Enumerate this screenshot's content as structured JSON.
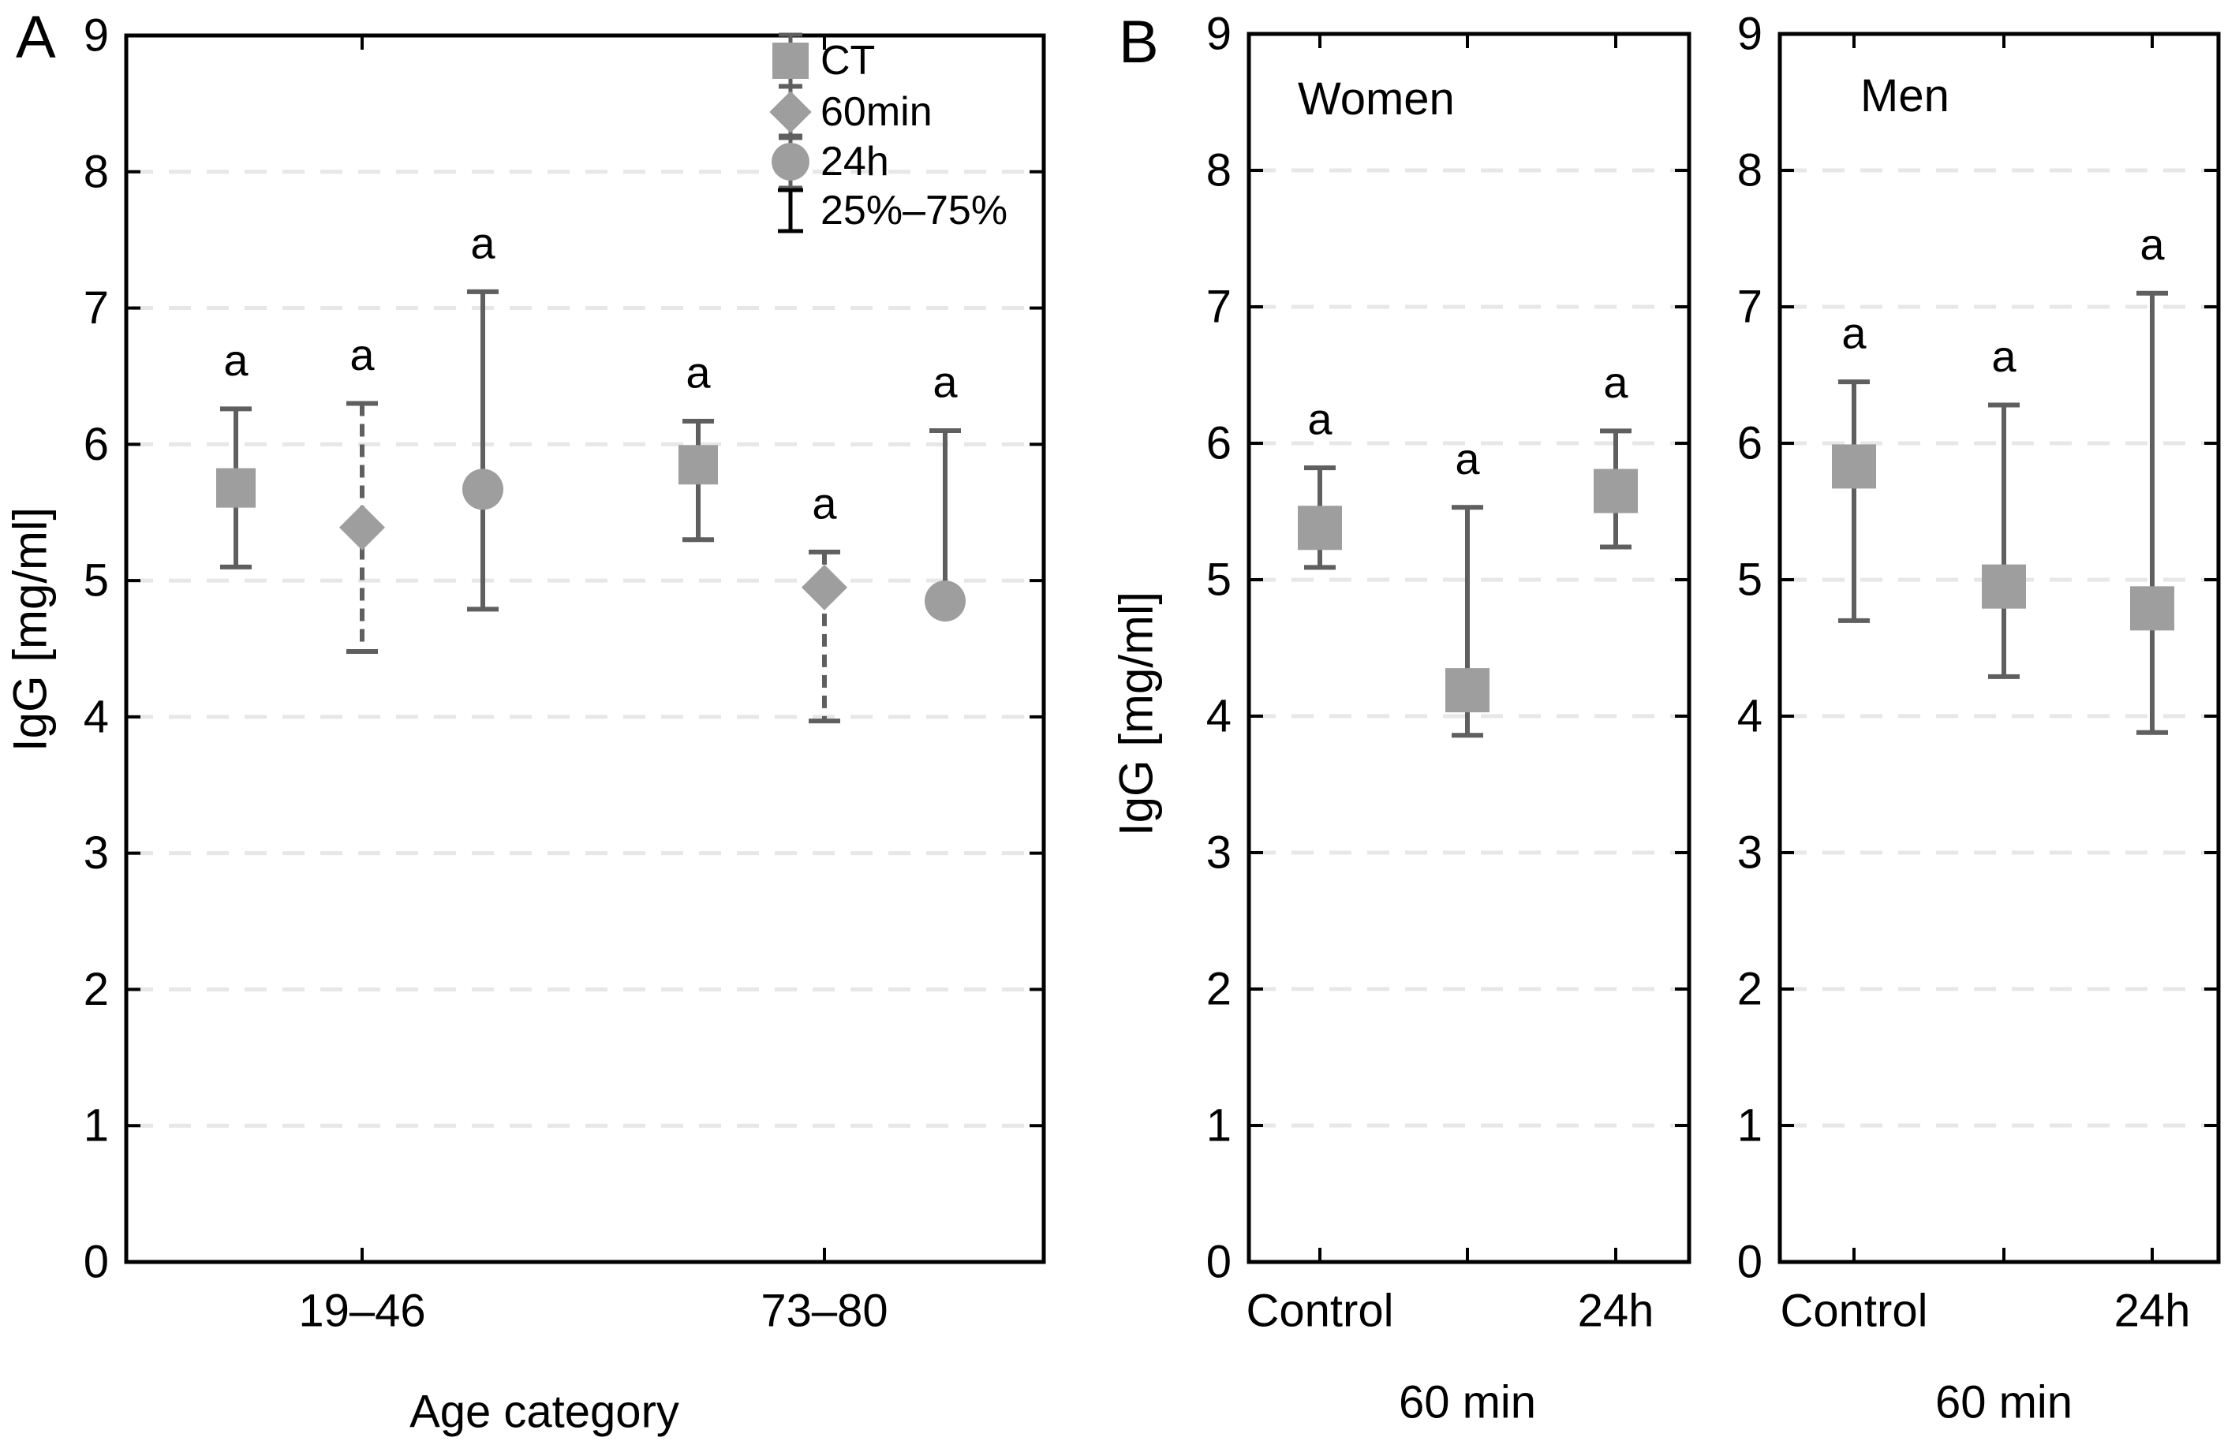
{
  "figure": {
    "panel_a": {
      "letter": "A",
      "y_axis_label": "IgG [mg/ml]",
      "x_axis_label": "Age category"
    },
    "panel_b": {
      "letter": "B",
      "y_axis_label": "IgG [mg/ml]"
    }
  },
  "legend": {
    "items": [
      {
        "symbol": "square-marker",
        "label": "CT"
      },
      {
        "symbol": "diamond-marker",
        "label": "60min"
      },
      {
        "symbol": "circle-marker",
        "label": "24h"
      },
      {
        "symbol": "error-bar",
        "label": "25%–75%"
      }
    ]
  },
  "style": {
    "marker_fill": "#9e9e9e",
    "whisker_color": "#5f5f5f",
    "grid_color": "#e7e7e7",
    "frame_color": "#000000",
    "text_color": "#000000",
    "background": "#ffffff"
  },
  "chart_data": [
    {
      "type": "scatter",
      "panel": "A",
      "title": "",
      "xlabel": "Age category",
      "ylabel": "IgG [mg/ml]",
      "ylim": [
        0,
        9
      ],
      "yticks": [
        0,
        1,
        2,
        3,
        4,
        5,
        6,
        7,
        8,
        9
      ],
      "gridlines": [
        1,
        2,
        3,
        4,
        5,
        6,
        7,
        8
      ],
      "grid_style": "dashed-horizontal",
      "legend_position": "top-right-inside",
      "error_bar_meaning": "25%–75%",
      "categories": [
        "19–46",
        "73–80"
      ],
      "series": [
        {
          "name": "CT",
          "marker": "square",
          "whisker_style": "solid",
          "points": [
            {
              "category": "19–46",
              "median": 5.68,
              "p25": 5.1,
              "p75": 6.26,
              "sig_label": "a"
            },
            {
              "category": "73–80",
              "median": 5.85,
              "p25": 5.3,
              "p75": 6.17,
              "sig_label": "a"
            }
          ]
        },
        {
          "name": "60min",
          "marker": "diamond",
          "whisker_style": "dashed",
          "points": [
            {
              "category": "19–46",
              "median": 5.39,
              "p25": 4.48,
              "p75": 6.3,
              "sig_label": "a"
            },
            {
              "category": "73–80",
              "median": 4.95,
              "p25": 3.97,
              "p75": 5.21,
              "sig_label": "a"
            }
          ]
        },
        {
          "name": "24h",
          "marker": "circle",
          "whisker_style": "solid",
          "points": [
            {
              "category": "19–46",
              "median": 5.67,
              "p25": 4.79,
              "p75": 7.12,
              "sig_label": "a"
            },
            {
              "category": "73–80",
              "median": 4.85,
              "p25": null,
              "p75": 6.1,
              "sig_label": "a"
            }
          ]
        }
      ]
    },
    {
      "type": "scatter",
      "panel": "B-left",
      "title": "Women",
      "xlabel": "",
      "ylabel": "IgG [mg/ml]",
      "ylim": [
        0,
        9
      ],
      "yticks": [
        0,
        1,
        2,
        3,
        4,
        5,
        6,
        7,
        8,
        9
      ],
      "gridlines": [
        1,
        2,
        3,
        4,
        5,
        6,
        7,
        8
      ],
      "grid_style": "dashed-horizontal",
      "error_bar_meaning": "25%–75%",
      "categories": [
        "Control",
        "60 min",
        "24h"
      ],
      "series": [
        {
          "name": "CT",
          "marker": "square",
          "whisker_style": "solid",
          "points": [
            {
              "category": "Control",
              "median": 5.38,
              "p25": 5.09,
              "p75": 5.82,
              "sig_label": "a"
            },
            {
              "category": "60 min",
              "median": 4.19,
              "p25": 3.86,
              "p75": 5.53,
              "sig_label": "a"
            },
            {
              "category": "24h",
              "median": 5.65,
              "p25": 5.24,
              "p75": 6.09,
              "sig_label": "a"
            }
          ]
        }
      ]
    },
    {
      "type": "scatter",
      "panel": "B-right",
      "title": "Men",
      "xlabel": "",
      "ylabel": "IgG [mg/ml]",
      "ylim": [
        0,
        9
      ],
      "yticks": [
        0,
        1,
        2,
        3,
        4,
        5,
        6,
        7,
        8,
        9
      ],
      "gridlines": [
        1,
        2,
        3,
        4,
        5,
        6,
        7,
        8
      ],
      "grid_style": "dashed-horizontal",
      "error_bar_meaning": "25%–75%",
      "categories": [
        "Control",
        "60 min",
        "24h"
      ],
      "series": [
        {
          "name": "CT",
          "marker": "square",
          "whisker_style": "solid",
          "points": [
            {
              "category": "Control",
              "median": 5.83,
              "p25": 4.7,
              "p75": 6.45,
              "sig_label": "a"
            },
            {
              "category": "60 min",
              "median": 4.95,
              "p25": 4.29,
              "p75": 6.28,
              "sig_label": "a"
            },
            {
              "category": "24h",
              "median": 4.79,
              "p25": 3.88,
              "p75": 7.1,
              "sig_label": "a"
            }
          ]
        }
      ]
    }
  ]
}
